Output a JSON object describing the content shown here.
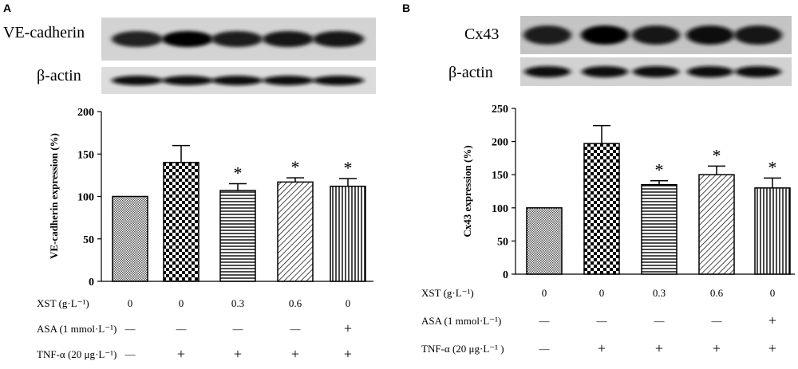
{
  "panels": [
    {
      "letter": "A",
      "blots": [
        {
          "label": "VE-cadherin",
          "intensities": [
            0.55,
            0.95,
            0.6,
            0.65,
            0.75
          ]
        },
        {
          "label": "β-actin",
          "intensities": [
            0.85,
            0.9,
            0.85,
            0.85,
            0.88
          ]
        }
      ],
      "chart_data": {
        "type": "bar",
        "ylabel": "VE-cadherin expression (%)",
        "ylim": [
          0,
          200
        ],
        "yticks": [
          0,
          50,
          100,
          150,
          200
        ],
        "values": [
          100,
          140,
          107,
          117,
          112
        ],
        "errors": [
          0,
          20,
          8,
          5,
          9
        ],
        "significance": [
          "",
          "",
          "*",
          "*",
          "*"
        ],
        "patterns": [
          "grid",
          "checker",
          "horizontal",
          "diagonal",
          "vertical"
        ]
      },
      "conditions": [
        {
          "label": "XST (g·L⁻¹)",
          "values": [
            "0",
            "0",
            "0.3",
            "0.6",
            "0"
          ]
        },
        {
          "label": "ASA (1 mmol·L⁻¹)",
          "values": [
            "—",
            "—",
            "—",
            "—",
            "+"
          ]
        },
        {
          "label": "TNF-α (20 μg·L⁻¹)",
          "values": [
            "—",
            "+",
            "+",
            "+",
            "+"
          ]
        }
      ]
    },
    {
      "letter": "B",
      "blots": [
        {
          "label": "Cx43",
          "intensities": [
            0.6,
            0.98,
            0.7,
            0.8,
            0.75
          ]
        },
        {
          "label": "β-actin",
          "intensities": [
            0.8,
            0.9,
            0.82,
            0.78,
            0.82
          ]
        }
      ],
      "chart_data": {
        "type": "bar",
        "ylabel": "Cx43 expression (%)",
        "ylim": [
          0,
          250
        ],
        "yticks": [
          0,
          50,
          100,
          150,
          200,
          250
        ],
        "values": [
          100,
          197,
          135,
          150,
          130
        ],
        "errors": [
          0,
          27,
          6,
          13,
          15
        ],
        "significance": [
          "",
          "",
          "*",
          "*",
          "*"
        ],
        "patterns": [
          "grid",
          "checker",
          "horizontal",
          "diagonal",
          "vertical"
        ]
      },
      "conditions": [
        {
          "label": "XST (g·L⁻¹)",
          "values": [
            "0",
            "0",
            "0.3",
            "0.6",
            "0"
          ]
        },
        {
          "label": "ASA (1 mmol·L⁻¹)",
          "values": [
            "—",
            "—",
            "—",
            "—",
            "+"
          ]
        },
        {
          "label": "TNF-α (20 μg·L⁻¹ )",
          "values": [
            "—",
            "+",
            "+",
            "+",
            "+"
          ]
        }
      ]
    }
  ]
}
